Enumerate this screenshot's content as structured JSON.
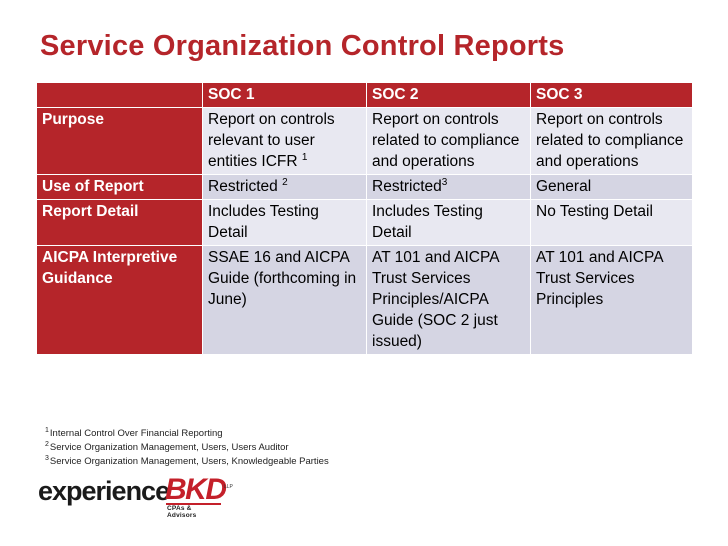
{
  "title": "Service Organization Control Reports",
  "table": {
    "headers": [
      "",
      "SOC 1",
      "SOC 2",
      "SOC 3"
    ],
    "rows": [
      {
        "label": "Purpose",
        "soc1": "Report on controls relevant to user entities ICFR",
        "soc1_sup": "1",
        "soc2": "Report on controls related to compliance and operations",
        "soc3": "Report on controls related to compliance and operations"
      },
      {
        "label": "Use of Report",
        "soc1": "Restricted",
        "soc1_sup": "2",
        "soc2": "Restricted",
        "soc2_sup": "3",
        "soc3": "General"
      },
      {
        "label": "Report Detail",
        "soc1": "Includes Testing Detail",
        "soc2": "Includes Testing Detail",
        "soc3": "No Testing Detail"
      },
      {
        "label": "AICPA Interpretive Guidance",
        "soc1": "SSAE 16 and AICPA Guide (forthcoming in June)",
        "soc2": "AT 101 and AICPA Trust Services Principles/AICPA Guide (SOC 2 just issued)",
        "soc3": "AT 101 and AICPA Trust Services Principles"
      }
    ]
  },
  "footnotes": [
    {
      "num": "1",
      "text": "Internal Control Over Financial Reporting"
    },
    {
      "num": "2",
      "text": "Service Organization Management, Users, Users Auditor"
    },
    {
      "num": "3",
      "text": "Service Organization Management, Users, Knowledgeable Parties"
    }
  ],
  "logo": {
    "word": "experience",
    "brand": "BKD",
    "suffix": "LLP",
    "tagline": "CPAs & Advisors"
  },
  "colors": {
    "accent": "#b5252a",
    "row_light": "#e8e8f1",
    "row_dark": "#d5d5e3"
  }
}
